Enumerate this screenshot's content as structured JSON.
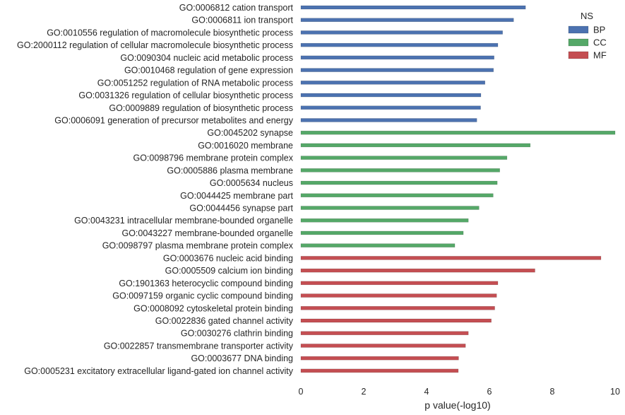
{
  "chart_data": {
    "type": "bar",
    "orientation": "horizontal",
    "xlabel": "p value(-log10)",
    "ylabel": "",
    "xlim": [
      0,
      10
    ],
    "xticks": [
      0,
      2,
      4,
      6,
      8,
      10
    ],
    "grid": false,
    "legend": {
      "title": "NS",
      "placement": "top-right",
      "entries": [
        {
          "name": "BP",
          "color": "#4c72b0"
        },
        {
          "name": "CC",
          "color": "#55a868"
        },
        {
          "name": "MF",
          "color": "#c44e52"
        }
      ]
    },
    "bars": [
      {
        "category": "GO:0006812 cation transport",
        "ns": "BP",
        "value": 7.15
      },
      {
        "category": "GO:0006811 ion transport",
        "ns": "BP",
        "value": 6.77
      },
      {
        "category": "GO:0010556 regulation of macromolecule biosynthetic process",
        "ns": "BP",
        "value": 6.42
      },
      {
        "category": "GO:2000112 regulation of cellular macromolecule biosynthetic process",
        "ns": "BP",
        "value": 6.27
      },
      {
        "category": "GO:0090304 nucleic acid metabolic process",
        "ns": "BP",
        "value": 6.15
      },
      {
        "category": "GO:0010468 regulation of gene expression",
        "ns": "BP",
        "value": 6.13
      },
      {
        "category": "GO:0051252 regulation of RNA metabolic process",
        "ns": "BP",
        "value": 5.86
      },
      {
        "category": "GO:0031326 regulation of cellular biosynthetic process",
        "ns": "BP",
        "value": 5.73
      },
      {
        "category": "GO:0009889 regulation of biosynthetic process",
        "ns": "BP",
        "value": 5.72
      },
      {
        "category": "GO:0006091 generation of precursor metabolites and energy",
        "ns": "BP",
        "value": 5.6
      },
      {
        "category": "GO:0045202 synapse",
        "ns": "CC",
        "value": 10.0
      },
      {
        "category": "GO:0016020 membrane",
        "ns": "CC",
        "value": 7.3
      },
      {
        "category": "GO:0098796 membrane protein complex",
        "ns": "CC",
        "value": 6.56
      },
      {
        "category": "GO:0005886 plasma membrane",
        "ns": "CC",
        "value": 6.33
      },
      {
        "category": "GO:0005634 nucleus",
        "ns": "CC",
        "value": 6.25
      },
      {
        "category": "GO:0044425 membrane part",
        "ns": "CC",
        "value": 6.12
      },
      {
        "category": "GO:0044456 synapse part",
        "ns": "CC",
        "value": 5.67
      },
      {
        "category": "GO:0043231 intracellular membrane-bounded organelle",
        "ns": "CC",
        "value": 5.33
      },
      {
        "category": "GO:0043227 membrane-bounded organelle",
        "ns": "CC",
        "value": 5.17
      },
      {
        "category": "GO:0098797 plasma membrane protein complex",
        "ns": "CC",
        "value": 4.9
      },
      {
        "category": "GO:0003676 nucleic acid binding",
        "ns": "MF",
        "value": 9.55
      },
      {
        "category": "GO:0005509 calcium ion binding",
        "ns": "MF",
        "value": 7.45
      },
      {
        "category": "GO:1901363 heterocyclic compound binding",
        "ns": "MF",
        "value": 6.27
      },
      {
        "category": "GO:0097159 organic cyclic compound binding",
        "ns": "MF",
        "value": 6.23
      },
      {
        "category": "GO:0008092 cytoskeletal protein binding",
        "ns": "MF",
        "value": 6.17
      },
      {
        "category": "GO:0022836 gated channel activity",
        "ns": "MF",
        "value": 6.06
      },
      {
        "category": "GO:0030276 clathrin binding",
        "ns": "MF",
        "value": 5.33
      },
      {
        "category": "GO:0022857 transmembrane transporter activity",
        "ns": "MF",
        "value": 5.24
      },
      {
        "category": "GO:0003677 DNA binding",
        "ns": "MF",
        "value": 5.02
      },
      {
        "category": "GO:0005231 excitatory extracellular ligand-gated ion channel activity",
        "ns": "MF",
        "value": 5.01
      }
    ]
  }
}
